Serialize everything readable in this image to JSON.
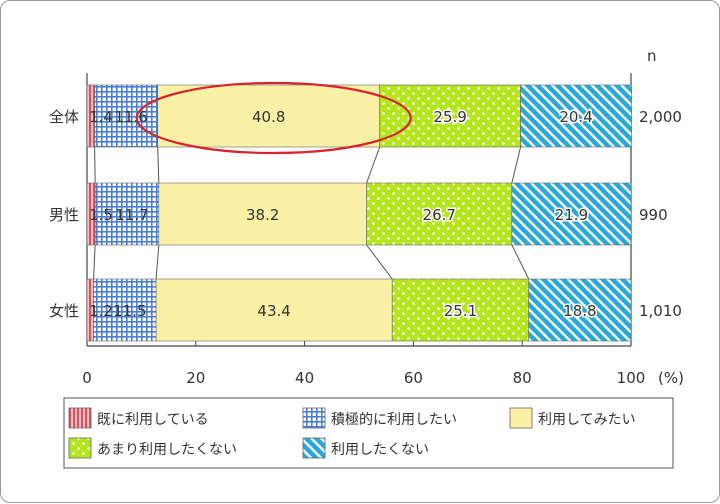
{
  "chart_data": {
    "type": "bar",
    "orientation": "horizontal",
    "stacked": true,
    "categories": [
      "全体",
      "男性",
      "女性"
    ],
    "n_header": "n",
    "n_values": [
      "2,000",
      "990",
      "1,010"
    ],
    "series": [
      {
        "name": "既に利用している",
        "values": [
          1.4,
          1.5,
          1.2
        ],
        "labels": [
          "1.4",
          "1.5",
          "1.2"
        ],
        "color": "#e8707a",
        "pattern": "vertical-stripes"
      },
      {
        "name": "積極的に利用したい",
        "values": [
          11.6,
          11.7,
          11.5
        ],
        "labels": [
          "11.6",
          "11.7",
          "11.5"
        ],
        "color": "#4a7fd6",
        "pattern": "grid"
      },
      {
        "name": "利用してみたい",
        "values": [
          40.8,
          38.2,
          43.4
        ],
        "labels": [
          "40.8",
          "38.2",
          "43.4"
        ],
        "color": "#fbf1a6",
        "pattern": "solid"
      },
      {
        "name": "あまり利用したくない",
        "values": [
          25.9,
          26.7,
          25.1
        ],
        "labels": [
          "25.9",
          "26.7",
          "25.1"
        ],
        "color": "#b5e61d",
        "pattern": "dots"
      },
      {
        "name": "利用したくない",
        "values": [
          20.4,
          21.9,
          18.8
        ],
        "labels": [
          "20.4",
          "21.9",
          "18.8"
        ],
        "color": "#2aa8d8",
        "pattern": "diagonal-stripes"
      }
    ],
    "xlim": [
      0,
      100
    ],
    "xticks": [
      "0",
      "20",
      "40",
      "60",
      "80",
      "100"
    ],
    "x_unit": "(%)",
    "legend_position": "bottom",
    "highlight": {
      "row": 0,
      "series": 2,
      "color": "#d9232a"
    }
  }
}
